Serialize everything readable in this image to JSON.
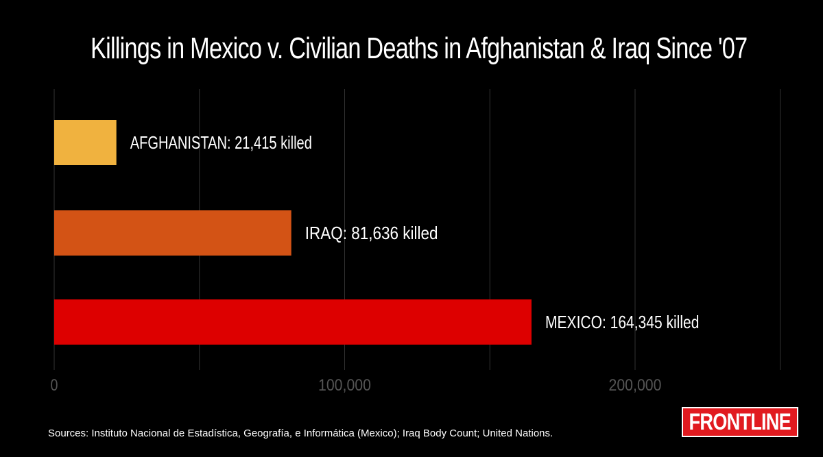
{
  "title": "Killings in Mexico v. Civilian Deaths in Afghanistan & Iraq Since '07",
  "source": "Sources: Instituto Nacional de Estadística, Geografía, e Informática (Mexico); Iraq Body Count; United Nations.",
  "logo_text": "FRONTLINE",
  "colors": {
    "background": "#000000",
    "afghanistan": "#f0b23f",
    "iraq": "#d35315",
    "mexico": "#dd0000",
    "gridline": "#333333",
    "tick_label": "#555555",
    "logo": "#e11a1f"
  },
  "chart_data": {
    "type": "bar",
    "orientation": "horizontal",
    "title": "Killings in Mexico v. Civilian Deaths in Afghanistan & Iraq Since '07",
    "categories": [
      "AFGHANISTAN",
      "IRAQ",
      "MEXICO"
    ],
    "values": [
      21415,
      81636,
      164345
    ],
    "bar_labels": [
      "AFGHANISTAN: 21,415 killed",
      "IRAQ: 81,636 killed",
      "MEXICO: 164,345 killed"
    ],
    "bar_colors": [
      "#f0b23f",
      "#d35315",
      "#dd0000"
    ],
    "xlim": [
      0,
      250000
    ],
    "gridlines": [
      0,
      50000,
      100000,
      150000,
      200000,
      250000
    ],
    "ticks": [
      {
        "value": 0,
        "label": "0"
      },
      {
        "value": 100000,
        "label": "100,000"
      },
      {
        "value": 200000,
        "label": "200,000"
      }
    ],
    "grid": true,
    "legend": false,
    "xlabel": "",
    "ylabel": ""
  }
}
